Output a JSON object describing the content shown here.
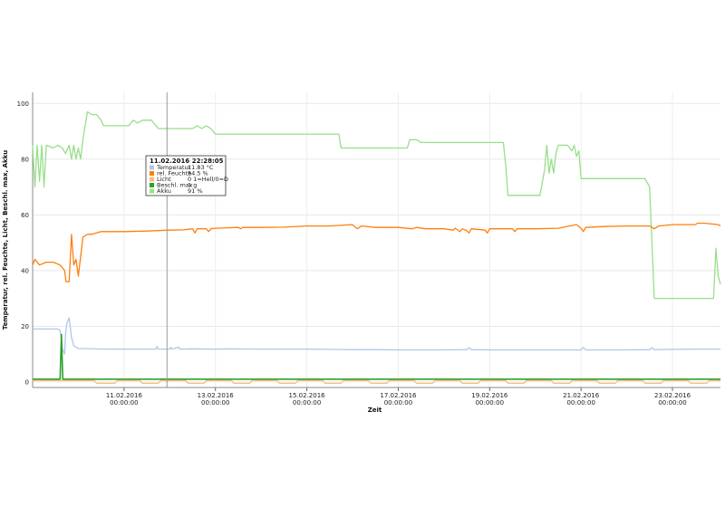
{
  "chart_data": {
    "type": "line",
    "xlabel": "Zeit",
    "ylabel": "Temperatur, rel. Feuchte, Licht, Beschl. max, Akku",
    "ylim": [
      0,
      104
    ],
    "xlim_days": [
      "09.02.2016",
      "24.02.2016 15:00"
    ],
    "grid": true,
    "y_ticks": [
      "0",
      "20",
      "40",
      "60",
      "80",
      "100"
    ],
    "x_ticks": [
      {
        "date": "11.02.2016",
        "time": "00:00:00",
        "x": 2.0
      },
      {
        "date": "13.02.2016",
        "time": "00:00:00",
        "x": 4.0
      },
      {
        "date": "15.02.2016",
        "time": "00:00:00",
        "x": 6.0
      },
      {
        "date": "17.02.2016",
        "time": "00:00:00",
        "x": 8.0
      },
      {
        "date": "19.02.2016",
        "time": "00:00:00",
        "x": 10.0
      },
      {
        "date": "21.02.2016",
        "time": "00:00:00",
        "x": 12.0
      },
      {
        "date": "23.02.2016",
        "time": "00:00:00",
        "x": 14.0
      }
    ],
    "series": [
      {
        "name": "Akku",
        "color": "#98df8a",
        "points": [
          [
            0,
            85
          ],
          [
            0.05,
            70
          ],
          [
            0.1,
            85
          ],
          [
            0.15,
            72
          ],
          [
            0.2,
            85
          ],
          [
            0.25,
            70
          ],
          [
            0.3,
            85
          ],
          [
            0.45,
            84
          ],
          [
            0.55,
            85
          ],
          [
            0.65,
            84
          ],
          [
            0.72,
            82
          ],
          [
            0.8,
            85
          ],
          [
            0.85,
            80
          ],
          [
            0.9,
            85
          ],
          [
            0.95,
            80
          ],
          [
            1.0,
            84
          ],
          [
            1.05,
            80
          ],
          [
            1.1,
            87
          ],
          [
            1.15,
            92
          ],
          [
            1.2,
            97
          ],
          [
            1.3,
            96
          ],
          [
            1.4,
            96
          ],
          [
            1.5,
            94
          ],
          [
            1.55,
            92
          ],
          [
            1.8,
            92
          ],
          [
            2.0,
            92
          ],
          [
            2.1,
            92
          ],
          [
            2.2,
            94
          ],
          [
            2.3,
            93
          ],
          [
            2.4,
            94
          ],
          [
            2.5,
            94
          ],
          [
            2.6,
            94
          ],
          [
            2.75,
            91
          ],
          [
            3.0,
            91
          ],
          [
            3.3,
            91
          ],
          [
            3.5,
            91
          ],
          [
            3.6,
            92
          ],
          [
            3.7,
            91
          ],
          [
            3.8,
            92
          ],
          [
            3.9,
            91
          ],
          [
            4.0,
            89
          ],
          [
            5.0,
            89
          ],
          [
            6.0,
            89
          ],
          [
            6.7,
            89
          ],
          [
            6.75,
            84
          ],
          [
            7.0,
            84
          ],
          [
            7.5,
            84
          ],
          [
            8.0,
            84
          ],
          [
            8.2,
            84
          ],
          [
            8.25,
            87
          ],
          [
            8.4,
            87
          ],
          [
            8.5,
            86
          ],
          [
            9.0,
            86
          ],
          [
            9.5,
            86
          ],
          [
            9.9,
            86
          ],
          [
            10.3,
            86
          ],
          [
            10.35,
            78
          ],
          [
            10.4,
            67
          ],
          [
            10.6,
            67
          ],
          [
            11.0,
            67
          ],
          [
            11.1,
            67
          ],
          [
            11.2,
            76
          ],
          [
            11.25,
            85
          ],
          [
            11.3,
            75
          ],
          [
            11.35,
            80
          ],
          [
            11.4,
            75
          ],
          [
            11.45,
            82
          ],
          [
            11.5,
            85
          ],
          [
            11.7,
            85
          ],
          [
            11.8,
            83
          ],
          [
            11.85,
            85
          ],
          [
            11.9,
            81
          ],
          [
            11.95,
            83
          ],
          [
            12.0,
            73
          ],
          [
            12.5,
            73
          ],
          [
            13.0,
            73
          ],
          [
            13.4,
            73
          ],
          [
            13.5,
            70
          ],
          [
            13.55,
            50
          ],
          [
            13.6,
            30
          ],
          [
            14.0,
            30
          ],
          [
            14.5,
            30
          ],
          [
            14.9,
            30
          ],
          [
            14.95,
            48
          ],
          [
            15.0,
            38
          ],
          [
            15.05,
            35
          ]
        ]
      },
      {
        "name": "rel. Feuchte",
        "color": "#ff7f0e",
        "points": [
          [
            0,
            42
          ],
          [
            0.05,
            44
          ],
          [
            0.15,
            42
          ],
          [
            0.3,
            43
          ],
          [
            0.45,
            43
          ],
          [
            0.6,
            42
          ],
          [
            0.7,
            40
          ],
          [
            0.73,
            36
          ],
          [
            0.8,
            36
          ],
          [
            0.85,
            53
          ],
          [
            0.9,
            42
          ],
          [
            0.95,
            44
          ],
          [
            1.0,
            38
          ],
          [
            1.05,
            45
          ],
          [
            1.1,
            52
          ],
          [
            1.2,
            53
          ],
          [
            1.3,
            53
          ],
          [
            1.5,
            54
          ],
          [
            2.0,
            54
          ],
          [
            2.5,
            54.2
          ],
          [
            3.0,
            54.5
          ],
          [
            3.3,
            54.6
          ],
          [
            3.5,
            55
          ],
          [
            3.55,
            53.5
          ],
          [
            3.6,
            55
          ],
          [
            3.8,
            55
          ],
          [
            3.85,
            54
          ],
          [
            3.9,
            55
          ],
          [
            4.0,
            55.2
          ],
          [
            4.5,
            55.5
          ],
          [
            4.55,
            55
          ],
          [
            4.6,
            55.5
          ],
          [
            5.0,
            55.5
          ],
          [
            5.5,
            55.6
          ],
          [
            6.0,
            56
          ],
          [
            6.5,
            56
          ],
          [
            7.0,
            56.5
          ],
          [
            7.1,
            55
          ],
          [
            7.2,
            56
          ],
          [
            7.5,
            55.5
          ],
          [
            8.0,
            55.5
          ],
          [
            8.3,
            55
          ],
          [
            8.4,
            55.5
          ],
          [
            8.6,
            55
          ],
          [
            9.0,
            55
          ],
          [
            9.2,
            54.5
          ],
          [
            9.25,
            55.2
          ],
          [
            9.35,
            54
          ],
          [
            9.4,
            55
          ],
          [
            9.5,
            54.3
          ],
          [
            9.55,
            53.5
          ],
          [
            9.6,
            55
          ],
          [
            9.9,
            54.5
          ],
          [
            9.95,
            53.5
          ],
          [
            10.0,
            55
          ],
          [
            10.5,
            55
          ],
          [
            10.55,
            54
          ],
          [
            10.6,
            55
          ],
          [
            11.0,
            55
          ],
          [
            11.5,
            55.2
          ],
          [
            11.9,
            56.5
          ],
          [
            12.0,
            55.2
          ],
          [
            12.05,
            54
          ],
          [
            12.1,
            55.5
          ],
          [
            12.5,
            55.8
          ],
          [
            13.0,
            56
          ],
          [
            13.5,
            56
          ],
          [
            13.6,
            55
          ],
          [
            13.7,
            56
          ],
          [
            14.0,
            56.5
          ],
          [
            14.5,
            56.5
          ],
          [
            14.55,
            57
          ],
          [
            14.7,
            57
          ],
          [
            15.0,
            56.5
          ],
          [
            15.05,
            56
          ]
        ]
      },
      {
        "name": "Temperatur",
        "color": "#aec7e8",
        "points": [
          [
            0,
            19
          ],
          [
            0.55,
            19
          ],
          [
            0.6,
            18.5
          ],
          [
            0.65,
            12
          ],
          [
            0.7,
            10
          ],
          [
            0.72,
            17
          ],
          [
            0.75,
            21
          ],
          [
            0.8,
            23
          ],
          [
            0.85,
            16
          ],
          [
            0.9,
            13
          ],
          [
            1.0,
            12
          ],
          [
            1.5,
            11.83
          ],
          [
            2.0,
            11.8
          ],
          [
            2.5,
            11.8
          ],
          [
            2.7,
            11.83
          ],
          [
            2.72,
            12.8
          ],
          [
            2.75,
            11.8
          ],
          [
            3.0,
            11.8
          ],
          [
            3.02,
            12.5
          ],
          [
            3.05,
            11.8
          ],
          [
            3.2,
            12.5
          ],
          [
            3.22,
            11.8
          ],
          [
            3.5,
            11.9
          ],
          [
            4.0,
            11.8
          ],
          [
            4.3,
            11.9
          ],
          [
            4.5,
            11.85
          ],
          [
            5.0,
            11.8
          ],
          [
            5.5,
            11.8
          ],
          [
            6.0,
            11.8
          ],
          [
            6.5,
            11.7
          ],
          [
            7.0,
            11.6
          ],
          [
            7.5,
            11.6
          ],
          [
            8.0,
            11.5
          ],
          [
            8.5,
            11.5
          ],
          [
            9.0,
            11.5
          ],
          [
            9.5,
            11.6
          ],
          [
            9.55,
            12.3
          ],
          [
            9.6,
            11.6
          ],
          [
            10.0,
            11.5
          ],
          [
            10.5,
            11.5
          ],
          [
            11.0,
            11.5
          ],
          [
            11.5,
            11.5
          ],
          [
            12.0,
            11.5
          ],
          [
            12.05,
            12.4
          ],
          [
            12.1,
            11.5
          ],
          [
            12.5,
            11.5
          ],
          [
            13.0,
            11.5
          ],
          [
            13.5,
            11.6
          ],
          [
            13.55,
            12.3
          ],
          [
            13.6,
            11.6
          ],
          [
            14.0,
            11.7
          ],
          [
            14.5,
            11.8
          ],
          [
            15.0,
            11.8
          ],
          [
            15.05,
            11.8
          ]
        ]
      },
      {
        "name": "Licht",
        "color": "#ffbb78",
        "points": [
          [
            0,
            0.5
          ],
          [
            1.35,
            0.5
          ],
          [
            1.4,
            -0.5
          ],
          [
            1.8,
            -0.5
          ],
          [
            1.85,
            0.5
          ],
          [
            2.35,
            0.5
          ],
          [
            2.4,
            -0.5
          ],
          [
            2.75,
            -0.5
          ],
          [
            2.8,
            0.5
          ],
          [
            3.35,
            0.5
          ],
          [
            3.4,
            -0.5
          ],
          [
            3.75,
            -0.5
          ],
          [
            3.8,
            0.5
          ],
          [
            4.35,
            0.5
          ],
          [
            4.4,
            -0.5
          ],
          [
            4.75,
            -0.5
          ],
          [
            4.8,
            0.5
          ],
          [
            5.35,
            0.5
          ],
          [
            5.4,
            -0.5
          ],
          [
            5.75,
            -0.5
          ],
          [
            5.8,
            0.5
          ],
          [
            6.35,
            0.5
          ],
          [
            6.4,
            -0.5
          ],
          [
            6.75,
            -0.5
          ],
          [
            6.8,
            0.5
          ],
          [
            7.35,
            0.5
          ],
          [
            7.4,
            -0.5
          ],
          [
            7.75,
            -0.5
          ],
          [
            7.8,
            0.5
          ],
          [
            8.35,
            0.5
          ],
          [
            8.4,
            -0.5
          ],
          [
            8.75,
            -0.5
          ],
          [
            8.8,
            0.5
          ],
          [
            9.35,
            0.5
          ],
          [
            9.4,
            -0.5
          ],
          [
            9.75,
            -0.5
          ],
          [
            9.8,
            0.5
          ],
          [
            10.35,
            0.5
          ],
          [
            10.4,
            -0.5
          ],
          [
            10.75,
            -0.5
          ],
          [
            10.8,
            0.5
          ],
          [
            11.35,
            0.5
          ],
          [
            11.4,
            -0.5
          ],
          [
            11.75,
            -0.5
          ],
          [
            11.8,
            0.5
          ],
          [
            12.35,
            0.5
          ],
          [
            12.4,
            -0.5
          ],
          [
            12.75,
            -0.5
          ],
          [
            12.8,
            0.5
          ],
          [
            13.35,
            0.5
          ],
          [
            13.4,
            -0.5
          ],
          [
            13.75,
            -0.5
          ],
          [
            13.8,
            0.5
          ],
          [
            14.35,
            0.5
          ],
          [
            14.4,
            -0.5
          ],
          [
            14.75,
            -0.5
          ],
          [
            14.8,
            0.5
          ],
          [
            15.05,
            0.5
          ]
        ]
      },
      {
        "name": "Beschl. max",
        "color": "#2ca02c",
        "points": [
          [
            0,
            1
          ],
          [
            0.6,
            1
          ],
          [
            0.63,
            17
          ],
          [
            0.66,
            1
          ],
          [
            1.0,
            1
          ],
          [
            15.05,
            1
          ]
        ]
      }
    ],
    "crosshair_x": 2.94,
    "tooltip": {
      "title": "11.02.2016 22:28:05",
      "rows": [
        {
          "color": "#aec7e8",
          "label": "Temperatur",
          "value": "11.83 °C"
        },
        {
          "color": "#ff7f0e",
          "label": "rel. Feuchte",
          "value": "54.5 %"
        },
        {
          "color": "#ffbb78",
          "label": "Licht",
          "value": "0 1=Hell/0=D"
        },
        {
          "color": "#2ca02c",
          "label": "Beschl. max",
          "value": "1 g"
        },
        {
          "color": "#98df8a",
          "label": "Akku",
          "value": "91 %"
        }
      ]
    }
  }
}
